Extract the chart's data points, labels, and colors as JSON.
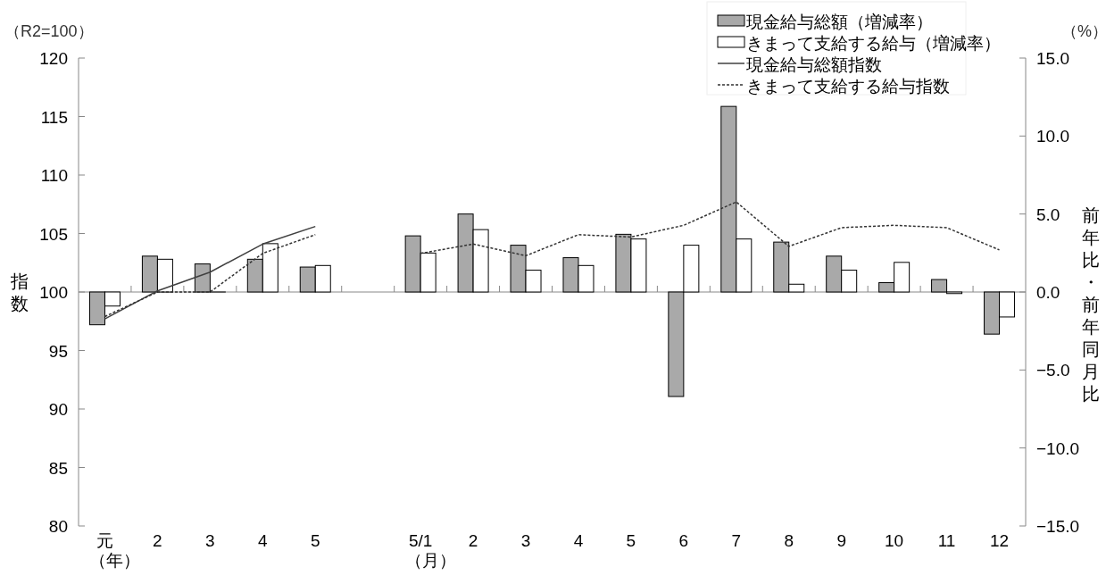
{
  "chart_data": {
    "type": "bar",
    "ylabel": "指数",
    "y2label": "前年比・前年同月比",
    "annotations": [
      "（R2=100）",
      "（%）"
    ],
    "categories": [
      "元（年）",
      "2",
      "3",
      "4",
      "5",
      null,
      "5/1（月）",
      "2",
      "3",
      "4",
      "5",
      "6",
      "7",
      "8",
      "9",
      "10",
      "11",
      "12"
    ],
    "ylim": [
      80,
      120
    ],
    "yticks": [
      80,
      85,
      90,
      95,
      100,
      105,
      110,
      115,
      120
    ],
    "y2lim": [
      -15,
      15
    ],
    "y2ticks": [
      {
        "value": -15,
        "label": "−15.0"
      },
      {
        "value": -10,
        "label": "−10.0"
      },
      {
        "value": -5,
        "label": "−5.0"
      },
      {
        "value": 0,
        "label": "0.0"
      },
      {
        "value": 5,
        "label": "5.0"
      },
      {
        "value": 10,
        "label": "10.0"
      },
      {
        "value": 15,
        "label": "15.0"
      }
    ],
    "legend": "top right",
    "series": [
      {
        "name": "現金給与総額（増減率）",
        "axis": "y2",
        "color": "#a9a9a9",
        "values": [
          -2.1,
          2.3,
          1.8,
          2.1,
          1.6,
          null,
          3.6,
          5.0,
          3.0,
          2.2,
          3.7,
          -6.7,
          11.9,
          3.2,
          2.3,
          0.6,
          0.8,
          -2.7
        ]
      },
      {
        "name": "きまって支給する給与（増減率）",
        "axis": "y2",
        "color": "#ffffff",
        "values": [
          -0.9,
          2.1,
          0.0,
          3.1,
          1.7,
          null,
          2.5,
          4.0,
          1.4,
          1.7,
          3.4,
          3.0,
          3.4,
          0.5,
          1.4,
          1.9,
          -0.1,
          -1.6
        ]
      },
      {
        "name": "現金給与総額指数",
        "type": "line",
        "axis": "y",
        "color": "#404040",
        "line_style": "solid",
        "values": [
          97.7,
          100.1,
          101.7,
          104.1,
          105.6,
          null,
          null,
          null,
          null,
          null,
          null,
          null,
          null,
          null,
          null,
          null,
          null,
          null
        ]
      },
      {
        "name": "きまって支給する給与指数",
        "type": "line",
        "axis": "y",
        "color": "#333333",
        "line_style": "dotted",
        "values": [
          97.9,
          100.0,
          100.0,
          103.3,
          104.9,
          null,
          103.3,
          104.1,
          103.1,
          104.9,
          104.7,
          105.7,
          107.7,
          103.9,
          105.5,
          105.7,
          105.5,
          103.6
        ]
      }
    ]
  }
}
